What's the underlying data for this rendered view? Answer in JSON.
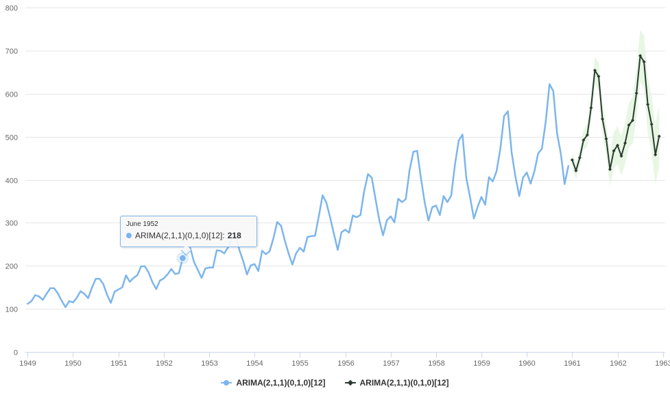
{
  "chart_data": {
    "type": "line",
    "title": "",
    "xlabel": "",
    "ylabel": "",
    "xlim": [
      1948.95,
      1963.05
    ],
    "ylim": [
      0,
      800
    ],
    "y_ticks": [
      0,
      100,
      200,
      300,
      400,
      500,
      600,
      700,
      800
    ],
    "x_ticks": [
      "1949",
      "1950",
      "1951",
      "1952",
      "1953",
      "1954",
      "1955",
      "1956",
      "1957",
      "1958",
      "1959",
      "1960",
      "1961",
      "1962",
      "1963"
    ],
    "grid": "horizontal",
    "legend": "bottom-center",
    "series": [
      {
        "name": "ARIMA(2,1,1)(0,1,0)[12]",
        "color": "#7cb5ec",
        "marker": "circle",
        "x_start": "1949-01",
        "frequency": "monthly",
        "values": [
          112,
          118,
          132,
          129,
          121,
          135,
          148,
          148,
          136,
          119,
          104,
          118,
          115,
          126,
          141,
          135,
          125,
          149,
          170,
          170,
          158,
          133,
          114,
          140,
          145,
          150,
          178,
          163,
          172,
          178,
          199,
          199,
          184,
          162,
          146,
          166,
          171,
          180,
          193,
          181,
          183,
          218,
          230,
          242,
          209,
          191,
          172,
          194,
          196,
          196,
          236,
          235,
          229,
          243,
          264,
          272,
          237,
          211,
          180,
          201,
          204,
          188,
          235,
          227,
          234,
          264,
          302,
          293,
          259,
          229,
          203,
          229,
          242,
          233,
          267,
          269,
          270,
          315,
          364,
          347,
          312,
          274,
          237,
          278,
          284,
          277,
          317,
          313,
          318,
          374,
          413,
          405,
          355,
          306,
          271,
          306,
          315,
          301,
          356,
          348,
          355,
          422,
          465,
          467,
          404,
          347,
          305,
          336,
          340,
          318,
          362,
          348,
          363,
          435,
          491,
          505,
          404,
          359,
          310,
          337,
          360,
          342,
          406,
          396,
          420,
          472,
          548,
          559,
          463,
          407,
          362,
          405,
          417,
          391,
          419,
          461,
          472,
          535,
          622,
          606,
          508,
          461,
          390,
          432
        ]
      },
      {
        "name": "ARIMA(2,1,1)(0,1,0)[12]",
        "color": "#2b3a30",
        "marker": "diamond",
        "x_start": "1961-01",
        "frequency": "monthly",
        "values": [
          446,
          421,
          451,
          492,
          504,
          567,
          654,
          640,
          541,
          495,
          424,
          467,
          480,
          455,
          485,
          527,
          538,
          601,
          688,
          674,
          575,
          529,
          458,
          501
        ],
        "band_lower": [
          428,
          402,
          430,
          468,
          478,
          538,
          623,
          607,
          506,
          458,
          385,
          425,
          436,
          409,
          436,
          476,
          484,
          544,
          628,
          612,
          511,
          462,
          390,
          430
        ],
        "band_upper": [
          464,
          440,
          472,
          516,
          530,
          596,
          685,
          673,
          576,
          532,
          463,
          509,
          524,
          501,
          534,
          578,
          592,
          658,
          748,
          736,
          639,
          596,
          526,
          572
        ],
        "band_color": "#e3f6df"
      }
    ],
    "tooltip": {
      "date": "June 1952",
      "series": "ARIMA(2,1,1)(0,1,0)[12]",
      "separator": ":",
      "value": "218",
      "x": "1952-06",
      "y": 218
    }
  }
}
